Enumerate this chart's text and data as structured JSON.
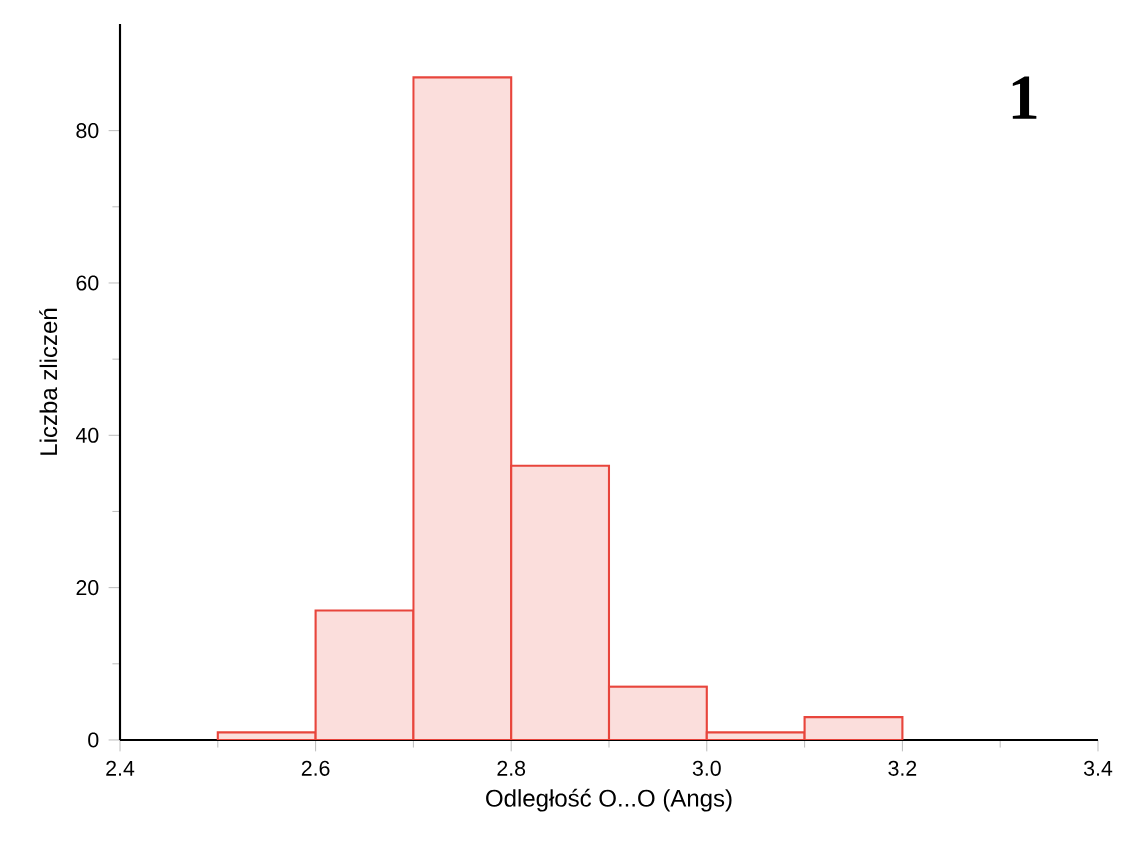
{
  "chart_data": {
    "type": "histogram",
    "xlabel": "Odległość O...O (Angs)",
    "ylabel": "Liczba zliczeń",
    "annotations": [
      "1"
    ],
    "bins": [
      2.5,
      2.6,
      2.7,
      2.8,
      2.9,
      3.0,
      3.1,
      3.2
    ],
    "values": [
      1,
      17,
      87,
      36,
      7,
      1,
      3
    ],
    "color": "#e8453c",
    "xlim": [
      2.4,
      3.4
    ],
    "ylim": [
      0,
      94
    ],
    "xticks": [
      2.4,
      2.6,
      2.8,
      {
        "value": 3,
        "label": "3.0"
      },
      3.2,
      3.4
    ],
    "yticks": [
      0,
      20,
      40,
      60,
      80
    ]
  }
}
